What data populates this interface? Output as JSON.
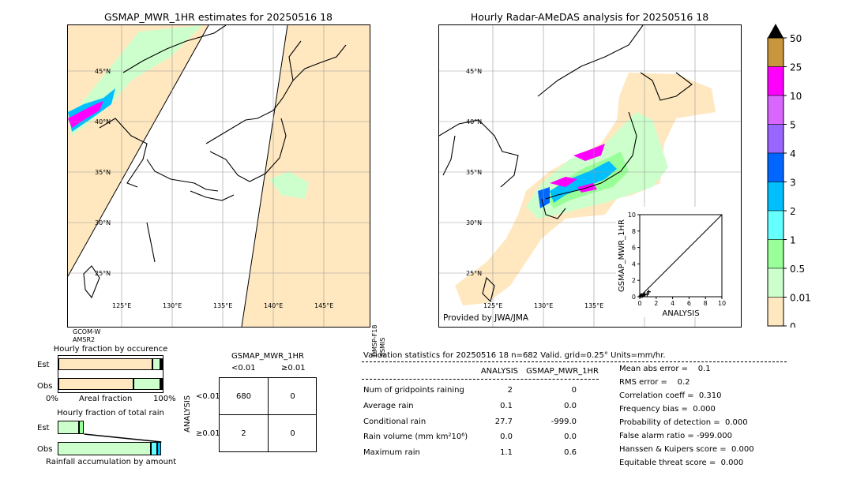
{
  "left_map": {
    "title": "GSMAP_MWR_1HR estimates for 20250516 18",
    "lat_labels": [
      "45°N",
      "40°N",
      "35°N",
      "30°N",
      "25°N"
    ],
    "lon_labels": [
      "125°E",
      "130°E",
      "135°E",
      "140°E",
      "145°E"
    ],
    "sensor_bottom_left": [
      "GCOM-W",
      "AMSR2"
    ],
    "sensor_right": [
      "DMSP-F18",
      "SSMIS"
    ]
  },
  "right_map": {
    "title": "Hourly Radar-AMeDAS analysis for 20250516 18",
    "lat_labels": [
      "45°N",
      "40°N",
      "35°N",
      "30°N",
      "25°N"
    ],
    "lon_labels": [
      "125°E",
      "130°E",
      "135°E"
    ],
    "credit": "Provided by JWA/JMA"
  },
  "colorbar": {
    "labels": [
      "50",
      "25",
      "10",
      "5",
      "4",
      "3",
      "2",
      "1",
      "0.5",
      "0.01",
      "0"
    ],
    "colors": [
      "#c8963c",
      "#ff00ff",
      "#d966ff",
      "#9966ff",
      "#0066ff",
      "#00bfff",
      "#66ffff",
      "#99ff99",
      "#ccffcc",
      "#ffe8c0"
    ],
    "over_color": "#000000"
  },
  "chart_data": [
    {
      "type": "scatter",
      "xlabel": "ANALYSIS",
      "ylabel": "GSMAP_MWR_1HR",
      "xlim": [
        0,
        10
      ],
      "ylim": [
        0,
        10
      ],
      "ticks": [
        "0",
        "2",
        "4",
        "6",
        "8",
        "10"
      ],
      "points": [
        [
          0.1,
          0.1
        ],
        [
          0.2,
          0.2
        ],
        [
          0.3,
          0.1
        ],
        [
          0.5,
          0.2
        ],
        [
          0.6,
          0.3
        ],
        [
          0.9,
          0.3
        ],
        [
          1.1,
          0.6
        ]
      ]
    },
    {
      "type": "bar",
      "title": "Hourly fraction by occurence",
      "rows": [
        {
          "label": "Est",
          "segments": [
            {
              "value": 0.9,
              "color": "#ffe8c0"
            },
            {
              "value": 0.08,
              "color": "#ccffcc"
            },
            {
              "value": 0.02,
              "color": "#000000"
            }
          ]
        },
        {
          "label": "Obs",
          "segments": [
            {
              "value": 0.72,
              "color": "#ffe8c0"
            },
            {
              "value": 0.26,
              "color": "#ccffcc"
            },
            {
              "value": 0.02,
              "color": "#000000"
            }
          ]
        }
      ],
      "axis_left": "0%",
      "axis_mid": "Areal fraction",
      "axis_right": "100%"
    },
    {
      "type": "bar",
      "title": "Hourly fraction of total rain",
      "rows": [
        {
          "label": "Est",
          "segments": [
            {
              "value": 0.2,
              "color": "#ccffcc"
            },
            {
              "value": 0.05,
              "color": "#99ff99"
            }
          ]
        },
        {
          "label": "Obs",
          "segments": [
            {
              "value": 0.88,
              "color": "#ccffcc"
            },
            {
              "value": 0.06,
              "color": "#66ffff"
            },
            {
              "value": 0.04,
              "color": "#00bfff"
            }
          ]
        }
      ],
      "axis_caption": "Rainfall accumulation by amount"
    }
  ],
  "contingency": {
    "title": "GSMAP_MWR_1HR",
    "col_labels": [
      "<0.01",
      "≥0.01"
    ],
    "row_axis": "ANALYSIS",
    "row_labels": [
      "<0.01",
      "≥0.01"
    ],
    "cells": [
      [
        "680",
        "0"
      ],
      [
        "2",
        "0"
      ]
    ]
  },
  "validation": {
    "header": "Validation statistics for 20250516 18  n=682 Valid. grid=0.25° Units=mm/hr.",
    "col_analysis": "ANALYSIS",
    "col_gsmap": "GSMAP_MWR_1HR",
    "rows": [
      {
        "label": "Num of gridpoints raining",
        "analysis": "2",
        "gsmap": "0"
      },
      {
        "label": "Average rain",
        "analysis": "0.1",
        "gsmap": "0.0"
      },
      {
        "label": "Conditional rain",
        "analysis": "27.7",
        "gsmap": "-999.0"
      },
      {
        "label": "Rain volume (mm km²10⁶)",
        "analysis": "0.0",
        "gsmap": "0.0"
      },
      {
        "label": "Maximum rain",
        "analysis": "1.1",
        "gsmap": "0.6"
      }
    ],
    "scores": [
      "Mean abs error =    0.1",
      "RMS error =    0.2",
      "Correlation coeff =  0.310",
      "Frequency bias =  0.000",
      "Probability of detection =  0.000",
      "False alarm ratio = -999.000",
      "Hanssen & Kuipers score =  0.000",
      "Equitable threat score =  0.000"
    ]
  }
}
